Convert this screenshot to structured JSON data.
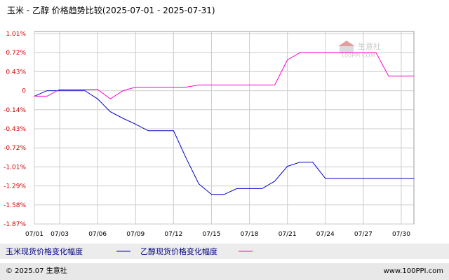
{
  "title": "玉米 - 乙醇 价格趋势比较(2025-07-01 - 2025-07-31)",
  "footer_left": "© 2025.07 生意社",
  "footer_right": "www.100PPI.com",
  "watermark": {
    "name": "生意社",
    "url": "100PPI.COM"
  },
  "colors": {
    "series_corn": "#0000cc",
    "series_ethanol": "#ff00cc",
    "tick_y": "#cc0000",
    "grid": "#cccccc",
    "footer_bg": "#e8e8e8",
    "legend_bg": "#ececec"
  },
  "chart_data": {
    "type": "line",
    "title": "玉米 - 乙醇 价格趋势比较(2025-07-01 - 2025-07-31)",
    "y_ticks": [
      "1.01%",
      "0.72%",
      "0.43%",
      "0",
      "-0.14%",
      "-0.43%",
      "-0.72%",
      "-1.01%",
      "-1.29%",
      "-1.58%",
      "-1.87%"
    ],
    "y_tick_values": [
      1.01,
      0.72,
      0.43,
      0,
      -0.14,
      -0.43,
      -0.72,
      -1.01,
      -1.29,
      -1.58,
      -1.87
    ],
    "x_ticks": [
      "07/01",
      "07/03",
      "07/06",
      "07/09",
      "07/12",
      "07/15",
      "07/18",
      "07/21",
      "07/24",
      "07/27",
      "07/30"
    ],
    "ylim": [
      -1.87,
      1.01
    ],
    "grid": true,
    "legend_position": "bottom",
    "series": [
      {
        "name": "玉米现货价格变化幅度",
        "color": "#0000cc",
        "points": [
          [
            "07/01",
            -0.04
          ],
          [
            "07/02",
            0.0
          ],
          [
            "07/03",
            0.0
          ],
          [
            "07/04",
            0.0
          ],
          [
            "07/05",
            0.0
          ],
          [
            "07/06",
            -0.06
          ],
          [
            "07/07",
            -0.17
          ],
          [
            "07/08",
            -0.27
          ],
          [
            "07/09",
            -0.36
          ],
          [
            "07/10",
            -0.46
          ],
          [
            "07/11",
            -0.46
          ],
          [
            "07/12",
            -0.46
          ],
          [
            "07/13",
            -0.88
          ],
          [
            "07/14",
            -1.26
          ],
          [
            "07/15",
            -1.42
          ],
          [
            "07/16",
            -1.42
          ],
          [
            "07/17",
            -1.33
          ],
          [
            "07/18",
            -1.33
          ],
          [
            "07/19",
            -1.33
          ],
          [
            "07/20",
            -1.22
          ],
          [
            "07/21",
            -1.0
          ],
          [
            "07/22",
            -0.94
          ],
          [
            "07/23",
            -0.94
          ],
          [
            "07/24",
            -1.18
          ],
          [
            "07/25",
            -1.18
          ],
          [
            "07/26",
            -1.18
          ],
          [
            "07/27",
            -1.18
          ],
          [
            "07/28",
            -1.18
          ],
          [
            "07/29",
            -1.18
          ],
          [
            "07/30",
            -1.18
          ],
          [
            "07/31",
            -1.18
          ]
        ]
      },
      {
        "name": "乙醇现货价格变化幅度",
        "color": "#ff00cc",
        "points": [
          [
            "07/01",
            -0.04
          ],
          [
            "07/02",
            -0.04
          ],
          [
            "07/03",
            0.03
          ],
          [
            "07/04",
            0.03
          ],
          [
            "07/05",
            0.03
          ],
          [
            "07/06",
            0.03
          ],
          [
            "07/07",
            -0.06
          ],
          [
            "07/08",
            0.0
          ],
          [
            "07/09",
            0.08
          ],
          [
            "07/10",
            0.08
          ],
          [
            "07/11",
            0.08
          ],
          [
            "07/12",
            0.08
          ],
          [
            "07/13",
            0.08
          ],
          [
            "07/14",
            0.13
          ],
          [
            "07/15",
            0.13
          ],
          [
            "07/16",
            0.13
          ],
          [
            "07/17",
            0.13
          ],
          [
            "07/18",
            0.13
          ],
          [
            "07/19",
            0.13
          ],
          [
            "07/20",
            0.13
          ],
          [
            "07/21",
            0.61
          ],
          [
            "07/22",
            0.72
          ],
          [
            "07/23",
            0.72
          ],
          [
            "07/24",
            0.72
          ],
          [
            "07/25",
            0.72
          ],
          [
            "07/26",
            0.72
          ],
          [
            "07/27",
            0.72
          ],
          [
            "07/28",
            0.72
          ],
          [
            "07/29",
            0.33
          ],
          [
            "07/30",
            0.33
          ],
          [
            "07/31",
            0.33
          ]
        ]
      }
    ]
  }
}
